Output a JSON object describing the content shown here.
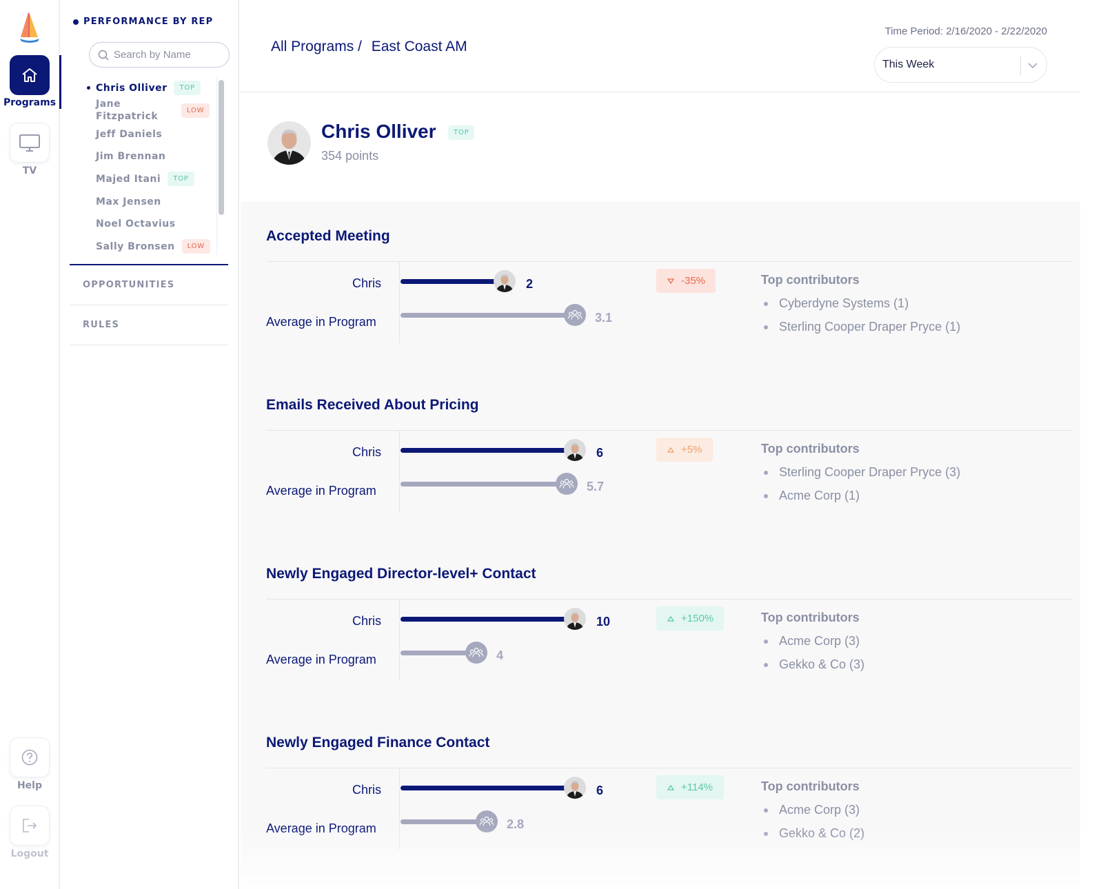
{
  "nav": {
    "programs_label": "Programs",
    "tv_label": "TV",
    "help_label": "Help",
    "logout_label": "Logout",
    "icons": {
      "logo": "sailboat-logo",
      "programs": "home-icon",
      "tv": "monitor-icon",
      "help": "question-icon",
      "logout": "logout-icon"
    }
  },
  "sidebar": {
    "heading": "PERFORMANCE BY REP",
    "search_placeholder": "Search by Name",
    "reps": [
      {
        "name": "Chris Olliver",
        "badge": "TOP",
        "active": true
      },
      {
        "name": "Jane Fitzpatrick",
        "badge": "LOW"
      },
      {
        "name": "Jeff Daniels",
        "badge": ""
      },
      {
        "name": "Jim Brennan",
        "badge": ""
      },
      {
        "name": "Majed Itani",
        "badge": "TOP"
      },
      {
        "name": "Max Jensen",
        "badge": ""
      },
      {
        "name": "Noel Octavius",
        "badge": ""
      },
      {
        "name": "Sally Bronsen",
        "badge": "LOW"
      }
    ],
    "links": [
      "OPPORTUNITIES",
      "RULES"
    ]
  },
  "header": {
    "breadcrumb": [
      "All Programs /",
      "East Coast AM"
    ],
    "time_period": "Time Period: 2/16/2020 - 2/22/2020",
    "period_select": "This Week"
  },
  "profile": {
    "name": "Chris Olliver",
    "badge": "TOP",
    "points": "354 points"
  },
  "colors": {
    "primary": "#0b1875",
    "muted": "#8a8fa3",
    "avg_bar": "#a6a8be",
    "top_badge": "#57c4ad",
    "low_badge": "#e8694f"
  },
  "metrics": [
    {
      "title": "Accepted Meeting",
      "rep_label": "Chris",
      "avg_label": "Average in Program",
      "rep_value": "2",
      "avg_value": "3.1",
      "rep_fraction": 0.455,
      "avg_fraction": 0.79,
      "change": "-35%",
      "change_dir": "down",
      "change_kind": "neg",
      "contributors_title": "Top contributors",
      "contributors": [
        "Cyberdyne Systems (1)",
        "Sterling Cooper Draper Pryce (1)"
      ]
    },
    {
      "title": "Emails Received About Pricing",
      "rep_label": "Chris",
      "avg_label": "Average in Program",
      "rep_value": "6",
      "avg_value": "5.7",
      "rep_fraction": 0.79,
      "avg_fraction": 0.75,
      "change": "+5%",
      "change_dir": "up",
      "change_kind": "warn",
      "contributors_title": "Top contributors",
      "contributors": [
        "Sterling Cooper Draper Pryce (3)",
        "Acme Corp (1)"
      ]
    },
    {
      "title": "Newly Engaged Director-level+ Contact",
      "rep_label": "Chris",
      "avg_label": "Average in Program",
      "rep_value": "10",
      "avg_value": "4",
      "rep_fraction": 0.79,
      "avg_fraction": 0.32,
      "change": "+150%",
      "change_dir": "up",
      "change_kind": "pos",
      "contributors_title": "Top contributors",
      "contributors": [
        "Acme Corp (3)",
        "Gekko & Co (3)"
      ]
    },
    {
      "title": "Newly Engaged Finance Contact",
      "rep_label": "Chris",
      "avg_label": "Average in Program",
      "rep_value": "6",
      "avg_value": "2.8",
      "rep_fraction": 0.79,
      "avg_fraction": 0.37,
      "change": "+114%",
      "change_dir": "up",
      "change_kind": "pos",
      "contributors_title": "Top contributors",
      "contributors": [
        "Acme Corp (3)",
        "Gekko & Co (2)"
      ]
    }
  ]
}
